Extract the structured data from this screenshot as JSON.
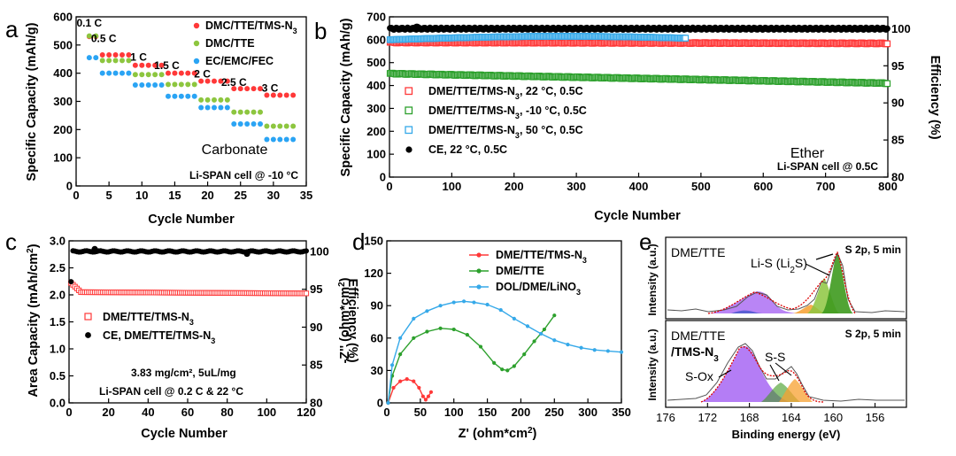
{
  "colors": {
    "red": "#ff3838",
    "green": "#2ca02c",
    "lgreen": "#8dc63f",
    "blue": "#2aa4f4",
    "lblue": "#36a9e9",
    "black": "#000000",
    "purple": "#a15cf2",
    "orange": "#f7a030",
    "darkgreen": "#3e9a1e",
    "gray": "#7a7a7a"
  },
  "chart_data": [
    {
      "type": "scatter",
      "panel_label": "a",
      "xlabel": "Cycle Number",
      "ylabel": "Specific Capacity (mAh/g)",
      "xlim": [
        0,
        35
      ],
      "ylim": [
        0,
        600
      ],
      "xticks": [
        "0",
        "5",
        "10",
        "15",
        "20",
        "25",
        "30",
        "35"
      ],
      "yticks": [
        "0",
        "100",
        "200",
        "300",
        "400",
        "500",
        "600"
      ],
      "rate_labels": [
        {
          "text": "0.1 C",
          "x": 2.0,
          "y": 565
        },
        {
          "text": "0.5 C",
          "x": 4.2,
          "y": 510
        },
        {
          "text": "1 C",
          "x": 9.5,
          "y": 445
        },
        {
          "text": "1.5 C",
          "x": 13.8,
          "y": 415
        },
        {
          "text": "2 C",
          "x": 19.2,
          "y": 385
        },
        {
          "text": "2.5 C",
          "x": 24.0,
          "y": 355
        },
        {
          "text": "3 C",
          "x": 29.5,
          "y": 335
        }
      ],
      "annotations": [
        "Carbonate",
        "Li-SPAN cell @ -10 °C"
      ],
      "series": [
        {
          "name": "DMC/TTE/TMS-N3",
          "legend_base": "DMC/TTE/TMS-N",
          "legend_sub": "3",
          "color": "#ff3838",
          "x": [
            2,
            3,
            4,
            5,
            6,
            7,
            8,
            9,
            10,
            11,
            12,
            13,
            14,
            15,
            16,
            17,
            18,
            19,
            20,
            21,
            22,
            23,
            24,
            25,
            26,
            27,
            28,
            29,
            30,
            31,
            32,
            33
          ],
          "y": [
            530,
            530,
            465,
            465,
            465,
            465,
            465,
            428,
            428,
            428,
            428,
            428,
            400,
            400,
            400,
            400,
            400,
            372,
            372,
            372,
            372,
            372,
            345,
            345,
            345,
            345,
            345,
            322,
            322,
            322,
            322,
            322
          ]
        },
        {
          "name": "DMC/TTE",
          "legend_base": "DMC/TTE",
          "legend_sub": "",
          "color": "#8dc63f",
          "x": [
            2,
            3,
            4,
            5,
            6,
            7,
            8,
            9,
            10,
            11,
            12,
            13,
            14,
            15,
            16,
            17,
            18,
            19,
            20,
            21,
            22,
            23,
            24,
            25,
            26,
            27,
            28,
            29,
            30,
            31,
            32,
            33
          ],
          "y": [
            532,
            532,
            445,
            445,
            445,
            445,
            445,
            395,
            395,
            395,
            395,
            395,
            360,
            360,
            360,
            360,
            360,
            305,
            305,
            305,
            305,
            305,
            262,
            262,
            262,
            262,
            262,
            212,
            212,
            212,
            212,
            212
          ]
        },
        {
          "name": "EC/EMC/FEC",
          "legend_base": "EC/EMC/FEC",
          "legend_sub": "",
          "color": "#2aa4f4",
          "x": [
            2,
            3,
            4,
            5,
            6,
            7,
            8,
            9,
            10,
            11,
            12,
            13,
            14,
            15,
            16,
            17,
            18,
            19,
            20,
            21,
            22,
            23,
            24,
            25,
            26,
            27,
            28,
            29,
            30,
            31,
            32,
            33
          ],
          "y": [
            455,
            455,
            400,
            400,
            400,
            400,
            400,
            358,
            358,
            358,
            358,
            358,
            318,
            318,
            318,
            318,
            318,
            278,
            278,
            278,
            278,
            278,
            220,
            220,
            220,
            220,
            220,
            165,
            165,
            165,
            165,
            165
          ]
        }
      ]
    },
    {
      "type": "scatter",
      "panel_label": "b",
      "xlabel": "Cycle Number",
      "ylabel": "Specific Capacity (mAh/g)",
      "y2label": "Efficiency  (%)",
      "xlim": [
        0,
        800
      ],
      "ylim": [
        0,
        700
      ],
      "y2lim": [
        80,
        101.6
      ],
      "xticks": [
        "0",
        "100",
        "200",
        "300",
        "400",
        "500",
        "600",
        "700",
        "800"
      ],
      "yticks": [
        "0",
        "100",
        "200",
        "300",
        "400",
        "500",
        "600",
        "700"
      ],
      "y2ticks": [
        "80",
        "85",
        "90",
        "95",
        "100"
      ],
      "annotations": [
        "Ether",
        "Li-SPAN cell @ 0.5C"
      ],
      "series": [
        {
          "name": "DME/TTE/TMS-N3, 22 °C, 0.5C",
          "legend_base": "DME/TTE/TMS-N",
          "legend_sub": "3",
          "legend_tail": ", 22 °C, 0.5C",
          "color": "#ff3838",
          "x_range": [
            1,
            800
          ],
          "y_start": 588,
          "y_end": 584
        },
        {
          "name": "DME/TTE/TMS-N3, -10 °C, 0.5C",
          "legend_base": "DME/TTE/TMS-N",
          "legend_sub": "3",
          "legend_tail": ", -10 °C, 0.5C",
          "color": "#2ca02c",
          "x_range": [
            1,
            800
          ],
          "y_start": 452,
          "y_end": 410
        },
        {
          "name": "DME/TTE/TMS-N3, 50 °C, 0.5C",
          "legend_base": "DME/TTE/TMS-N",
          "legend_sub": "3",
          "legend_tail": ", 50 °C, 0.5C",
          "color": "#36a9e9",
          "x_range": [
            1,
            475
          ],
          "y_start": 600,
          "y_end": 615
        },
        {
          "name": "CE, 22 °C, 0.5C",
          "legend_base": "CE, 22 °C, 0.5C",
          "legend_sub": "",
          "legend_tail": "",
          "color": "#000000",
          "x_range": [
            1,
            800
          ],
          "efficiency": 100.0
        }
      ]
    },
    {
      "type": "scatter",
      "panel_label": "c",
      "xlabel": "Cycle Number",
      "ylabel": "Area Capacity (mAh/cm2)",
      "y2label": "Efficiency  (%)",
      "xlim": [
        0,
        120
      ],
      "ylim": [
        0,
        3.0
      ],
      "y2lim": [
        80,
        101.4
      ],
      "xticks": [
        "0",
        "20",
        "40",
        "60",
        "80",
        "100",
        "120"
      ],
      "yticks": [
        "0.0",
        "0.5",
        "1.0",
        "1.5",
        "2.0",
        "2.5",
        "3.0"
      ],
      "y2ticks": [
        "80",
        "85",
        "90",
        "95",
        "100"
      ],
      "annotations": [
        "3.83 mg/cm², 5uL/mg",
        "Li-SPAN cell @ 0.2 C & 22 °C"
      ],
      "series": [
        {
          "name": "DME/TTE/TMS-N3",
          "legend_base": "DME/TTE/TMS-N",
          "legend_sub": "3",
          "color": "#ff3838",
          "x_range": [
            1,
            120
          ],
          "y_start": 2.22,
          "y_plateau": 2.05
        },
        {
          "name": "CE, DME/TTE/TMS-N3",
          "legend_base": "CE, DME/TTE/TMS-N",
          "legend_sub": "3",
          "color": "#000000",
          "x_range": [
            1,
            120
          ],
          "efficiency": 100.0,
          "first_cycle": 96.0
        }
      ]
    },
    {
      "type": "line",
      "panel_label": "d",
      "xlabel": "Z' (ohm*cm2)",
      "ylabel": "-Z'' (ohm*cm2)",
      "xlim": [
        0,
        350
      ],
      "ylim": [
        0,
        150
      ],
      "xticks": [
        "0",
        "50",
        "100",
        "150",
        "200",
        "250",
        "300",
        "350"
      ],
      "yticks": [
        "0",
        "30",
        "60",
        "90",
        "120",
        "150"
      ],
      "series": [
        {
          "name": "DME/TTE/TMS-N3",
          "legend_base": "DME/TTE/TMS-N",
          "legend_sub": "3",
          "color": "#ff3838",
          "x": [
            2,
            10,
            20,
            30,
            40,
            48,
            54,
            58,
            62,
            66
          ],
          "y": [
            0,
            14,
            20,
            22,
            20,
            14,
            6,
            3,
            6,
            10
          ]
        },
        {
          "name": "DME/TTE",
          "legend_base": "DME/TTE",
          "legend_sub": "",
          "color": "#2ca02c",
          "x": [
            2,
            8,
            20,
            40,
            60,
            80,
            100,
            120,
            140,
            160,
            172,
            180,
            190,
            205,
            220,
            235,
            250
          ],
          "y": [
            0,
            25,
            45,
            60,
            66,
            69,
            68,
            63,
            52,
            37,
            31,
            30,
            34,
            45,
            57,
            68,
            81
          ]
        },
        {
          "name": "DOL/DME/LiNO3",
          "legend_base": "DOL/DME/LiNO",
          "legend_sub": "3",
          "color": "#36a9e9",
          "x": [
            2,
            8,
            20,
            40,
            60,
            80,
            100,
            115,
            130,
            150,
            170,
            190,
            210,
            230,
            250,
            270,
            290,
            310,
            330,
            350
          ],
          "y": [
            0,
            35,
            60,
            78,
            85,
            90,
            93,
            94,
            93,
            91,
            86,
            78,
            71,
            64,
            58,
            54,
            51,
            49,
            48,
            47
          ]
        }
      ]
    }
  ],
  "panel_e": {
    "panel_label": "e",
    "xlabel": "Binding energy (eV)",
    "ylabel": "Intensity (a.u.)",
    "xticks": [
      "176",
      "172",
      "168",
      "164",
      "160",
      "156"
    ],
    "top": {
      "sample": "DME/TTE",
      "tag": "S 2p, 5 min",
      "peak_label": "Li-S (Li",
      "peak_sub": "2",
      "peak_tail": "S)"
    },
    "bottom": {
      "sample_line1": "DME/TTE",
      "sample_line2": "/TMS-N",
      "sample_sub": "3",
      "tag": "S 2p, 5 min",
      "label_ss": "S-S",
      "label_sox": "S-Ox"
    }
  }
}
